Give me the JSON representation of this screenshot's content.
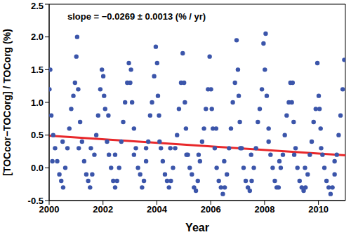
{
  "chart_data": {
    "type": "scatter",
    "xlabel": "Year",
    "ylabel": "[TOCcor−TOCorg] / TOCorg (%)",
    "annotation": "slope = −0.0269 ± 0.0013 (% / yr)",
    "xlim": [
      2000,
      2011
    ],
    "xticks": [
      2000,
      2002,
      2004,
      2006,
      2008,
      2010
    ],
    "ylim": [
      -0.5,
      2.5
    ],
    "yticks": [
      -0.5,
      {
        "value": 0,
        "label": "0.0"
      },
      0.5,
      {
        "value": 1,
        "label": "1.0"
      },
      1.5,
      {
        "value": 2,
        "label": "2.0"
      },
      2.5
    ],
    "grid": false,
    "series": [
      {
        "type": "scatter",
        "color": "#3b55aa",
        "marker": "circle",
        "x": [
          2000.01,
          2000.04,
          2000.08,
          2000.15,
          2000.22,
          2000.3,
          2000.38,
          2000.45,
          2000.52,
          2000.6,
          2000.68,
          2000.75,
          2000.82,
          2000.9,
          2000.96,
          2000.12,
          2000.5,
          2001.01,
          2001.04,
          2001.08,
          2001.15,
          2001.22,
          2001.3,
          2001.38,
          2001.45,
          2001.52,
          2001.6,
          2001.68,
          2001.75,
          2001.82,
          2001.9,
          2001.96,
          2001.1,
          2001.55,
          2002.01,
          2002.04,
          2002.08,
          2002.15,
          2002.22,
          2002.3,
          2002.38,
          2002.45,
          2002.52,
          2002.6,
          2002.68,
          2002.75,
          2002.82,
          2002.9,
          2002.96,
          2002.2,
          2002.45,
          2003.01,
          2003.04,
          2003.08,
          2003.15,
          2003.22,
          2003.3,
          2003.38,
          2003.45,
          2003.52,
          2003.6,
          2003.68,
          2003.75,
          2003.82,
          2003.9,
          2003.96,
          2003.15,
          2003.6,
          2004.01,
          2004.04,
          2004.08,
          2004.15,
          2004.22,
          2004.3,
          2004.38,
          2004.45,
          2004.52,
          2004.6,
          2004.68,
          2004.75,
          2004.82,
          2004.9,
          2004.96,
          2004.1,
          2004.5,
          2005.01,
          2005.04,
          2005.08,
          2005.15,
          2005.22,
          2005.3,
          2005.38,
          2005.45,
          2005.52,
          2005.6,
          2005.68,
          2005.75,
          2005.82,
          2005.9,
          2005.96,
          2005.1,
          2005.55,
          2006.01,
          2006.04,
          2006.08,
          2006.15,
          2006.22,
          2006.3,
          2006.38,
          2006.45,
          2006.52,
          2006.6,
          2006.68,
          2006.75,
          2006.82,
          2006.9,
          2006.96,
          2006.2,
          2006.5,
          2007.01,
          2007.04,
          2007.08,
          2007.15,
          2007.22,
          2007.3,
          2007.38,
          2007.45,
          2007.52,
          2007.6,
          2007.68,
          2007.75,
          2007.82,
          2007.9,
          2007.96,
          2007.1,
          2007.5,
          2008.01,
          2008.04,
          2008.08,
          2008.15,
          2008.22,
          2008.3,
          2008.38,
          2008.45,
          2008.52,
          2008.6,
          2008.68,
          2008.75,
          2008.82,
          2008.9,
          2008.96,
          2008.15,
          2008.55,
          2009.01,
          2009.04,
          2009.08,
          2009.15,
          2009.22,
          2009.3,
          2009.38,
          2009.45,
          2009.52,
          2009.6,
          2009.68,
          2009.75,
          2009.82,
          2009.9,
          2009.96,
          2009.1,
          2009.5,
          2010.01,
          2010.04,
          2010.08,
          2010.15,
          2010.22,
          2010.3,
          2010.38,
          2010.45,
          2010.52,
          2010.6,
          2010.68,
          2010.75,
          2010.82,
          2010.9,
          2010.96,
          2010.1,
          2010.6
        ],
        "values": [
          1.2,
          1.5,
          0.8,
          0.5,
          0.3,
          0.1,
          -0.1,
          -0.2,
          -0.3,
          0.0,
          0.3,
          0.6,
          0.9,
          1.1,
          1.3,
          0.1,
          0.4,
          1.7,
          2.0,
          1.2,
          0.7,
          0.4,
          0.1,
          -0.1,
          -0.2,
          -0.3,
          -0.1,
          0.2,
          0.5,
          0.8,
          1.2,
          1.5,
          0.3,
          0.3,
          1.4,
          1.1,
          0.9,
          0.4,
          0.2,
          0.0,
          -0.2,
          -0.3,
          -0.2,
          0.0,
          0.4,
          0.7,
          1.0,
          1.3,
          1.6,
          0.8,
          0.2,
          1.3,
          1.5,
          1.0,
          0.6,
          0.3,
          0.0,
          -0.1,
          -0.3,
          -0.2,
          0.1,
          0.4,
          0.8,
          1.0,
          1.4,
          1.85,
          0.2,
          0.3,
          1.6,
          1.1,
          0.8,
          0.3,
          0.1,
          -0.1,
          -0.2,
          -0.3,
          -0.2,
          0.0,
          0.3,
          0.5,
          0.9,
          1.3,
          1.75,
          0.4,
          0.3,
          1.3,
          1.0,
          0.6,
          0.2,
          0.0,
          -0.1,
          -0.3,
          -0.35,
          -0.2,
          0.1,
          0.4,
          0.6,
          0.9,
          1.2,
          1.7,
          0.2,
          0.2,
          1.2,
          0.9,
          0.6,
          0.3,
          0.0,
          -0.2,
          -0.3,
          -0.4,
          -0.3,
          -0.1,
          0.3,
          0.6,
          1.0,
          1.3,
          1.95,
          0.6,
          0.1,
          1.5,
          1.1,
          0.7,
          0.3,
          0.0,
          -0.2,
          -0.3,
          -0.35,
          -0.2,
          0.0,
          0.3,
          0.7,
          0.9,
          1.2,
          1.9,
          0.3,
          0.2,
          1.5,
          2.05,
          1.1,
          0.6,
          0.2,
          0.0,
          -0.2,
          -0.3,
          -0.3,
          0.0,
          0.2,
          0.5,
          0.8,
          1.0,
          1.3,
          0.4,
          0.1,
          1.0,
          1.3,
          0.7,
          0.3,
          0.0,
          -0.2,
          -0.3,
          -0.35,
          -0.3,
          -0.1,
          0.2,
          0.4,
          0.7,
          0.9,
          1.6,
          0.2,
          0.0,
          1.1,
          0.9,
          0.6,
          0.2,
          0.0,
          -0.2,
          -0.3,
          -0.4,
          -0.3,
          -0.1,
          0.2,
          0.5,
          0.8,
          1.2,
          1.65,
          0.3,
          0.1
        ]
      },
      {
        "type": "line",
        "color": "#e8282b",
        "line_style": "solid",
        "x": [
          2000,
          2011
        ],
        "values": [
          0.49,
          0.19
        ]
      }
    ]
  }
}
